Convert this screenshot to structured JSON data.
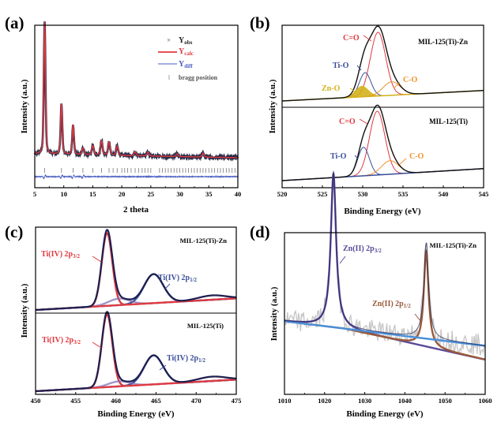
{
  "chart_data": [
    {
      "panel": "a",
      "panel_label": "(a)",
      "type": "line",
      "title": "",
      "xlabel": "2 theta",
      "ylabel": "Intensity (a.u.)",
      "xlim": [
        5,
        40
      ],
      "xticks": [
        "5",
        "10",
        "15",
        "20",
        "25",
        "30",
        "35",
        "40"
      ],
      "legend": {
        "placement": "top-right",
        "entries": [
          {
            "name": "Y",
            "sub": "obs",
            "marker": "x",
            "color": "#333333"
          },
          {
            "name": "Y",
            "sub": "calc",
            "marker": "line",
            "color": "#e0393f"
          },
          {
            "name": "Y",
            "sub": "diff",
            "marker": "line",
            "color": "#4a5fc1"
          },
          {
            "name": "bragg position",
            "sub": "",
            "marker": "tick",
            "color": "#777777"
          }
        ]
      },
      "peaks": [
        {
          "x": 6.7,
          "height": 1.0,
          "width": 0.17
        },
        {
          "x": 9.6,
          "height": 0.38,
          "width": 0.17
        },
        {
          "x": 11.6,
          "height": 0.22,
          "width": 0.17
        },
        {
          "x": 13.3,
          "height": 0.05,
          "width": 0.2
        },
        {
          "x": 15.0,
          "height": 0.07,
          "width": 0.2
        },
        {
          "x": 16.5,
          "height": 0.11,
          "width": 0.2
        },
        {
          "x": 17.8,
          "height": 0.1,
          "width": 0.2
        },
        {
          "x": 19.2,
          "height": 0.07,
          "width": 0.2
        },
        {
          "x": 22.3,
          "height": 0.03,
          "width": 0.2
        },
        {
          "x": 24.5,
          "height": 0.03,
          "width": 0.2
        },
        {
          "x": 29.5,
          "height": 0.02,
          "width": 0.2
        },
        {
          "x": 34.0,
          "height": 0.03,
          "width": 0.2
        }
      ],
      "baseline": 0.06,
      "bragg_positions": [
        6.7,
        9.6,
        11.6,
        13.3,
        15.0,
        16.5,
        17.8,
        18.5,
        19.2,
        20.0,
        20.5,
        21.0,
        21.6,
        22.3,
        22.9,
        23.5,
        24.0,
        24.5,
        25.0,
        26.5,
        27.0,
        27.5,
        28.0,
        28.5,
        29.0,
        29.5,
        30.0,
        30.5,
        31.0,
        31.5,
        32.0,
        32.5,
        33.0,
        33.5,
        34.0,
        34.5,
        35.0,
        35.5,
        36.0,
        36.5,
        37.0,
        37.5,
        38.0,
        38.5,
        39.0,
        39.5
      ]
    },
    {
      "panel": "b",
      "panel_label": "(b)",
      "type": "line",
      "xlabel": "Binding Energy (eV)",
      "ylabel": "Intensity (a.u.)",
      "xlim": [
        520,
        545
      ],
      "xticks": [
        "520",
        "525",
        "530",
        "535",
        "540",
        "545"
      ],
      "subplots": [
        {
          "sample": "MIL-125(Ti)-Zn",
          "baseline_color": "#d4b21c",
          "components": [
            {
              "name": "C=O",
              "center": 531.9,
              "height": 0.85,
              "fwhm": 1.6,
              "color": "#e0393f"
            },
            {
              "name": "Ti-O",
              "center": 530.3,
              "height": 0.32,
              "fwhm": 1.2,
              "color": "#3a4f9a"
            },
            {
              "name": "Zn-O",
              "center": 529.9,
              "height": 0.14,
              "fwhm": 1.3,
              "color": "#d4b21c",
              "filled": true
            },
            {
              "name": "C-O",
              "center": 533.6,
              "height": 0.18,
              "fwhm": 1.8,
              "color": "#f0922c"
            }
          ],
          "annotations": [
            "C=O",
            "Ti-O",
            "Zn-O",
            "C-O"
          ]
        },
        {
          "sample": "MIL-125(Ti)",
          "baseline_color": "#3a4f9a",
          "components": [
            {
              "name": "C=O",
              "center": 531.8,
              "height": 0.85,
              "fwhm": 1.6,
              "color": "#e0393f"
            },
            {
              "name": "Ti-O",
              "center": 530.1,
              "height": 0.38,
              "fwhm": 1.2,
              "color": "#3a4f9a"
            },
            {
              "name": "C-O",
              "center": 533.4,
              "height": 0.18,
              "fwhm": 1.8,
              "color": "#f0922c"
            }
          ],
          "annotations": [
            "C=O",
            "Ti-O",
            "C-O"
          ]
        }
      ]
    },
    {
      "panel": "c",
      "panel_label": "(c)",
      "type": "line",
      "xlabel": "Binding Energy (eV)",
      "ylabel": "Intensity (a.u.)",
      "xlim": [
        450,
        475
      ],
      "xticks": [
        "450",
        "455",
        "460",
        "465",
        "470",
        "475"
      ],
      "subplots": [
        {
          "sample": "MIL-125(Ti)-Zn",
          "components": [
            {
              "name": "Ti(IV) 2p3/2",
              "center": 458.9,
              "height": 1.0,
              "fwhm": 1.1,
              "color": "#e0393f"
            },
            {
              "name": "Ti(IV) 2p1/2",
              "center": 464.7,
              "height": 0.4,
              "fwhm": 2.0,
              "color": "#3a4f9a"
            },
            {
              "name": "satellite",
              "center": 460.4,
              "height": 0.09,
              "fwhm": 2.2,
              "color": "#7a6ab0"
            },
            {
              "name": "satellite2",
              "center": 472.0,
              "height": 0.06,
              "fwhm": 3.0,
              "color": "#d9a0a8"
            }
          ],
          "annotations": [
            {
              "main": "Ti(IV) 2p",
              "sub": "3/2",
              "color": "#e0393f"
            },
            {
              "main": "Ti(IV) 2p",
              "sub": "1/2",
              "color": "#3a4f9a"
            }
          ]
        },
        {
          "sample": "MIL-125(Ti)",
          "components": [
            {
              "name": "Ti(IV) 2p3/2",
              "center": 458.9,
              "height": 1.0,
              "fwhm": 1.1,
              "color": "#e0393f"
            },
            {
              "name": "Ti(IV) 2p1/2",
              "center": 464.7,
              "height": 0.4,
              "fwhm": 2.0,
              "color": "#3a4f9a"
            },
            {
              "name": "satellite",
              "center": 460.4,
              "height": 0.07,
              "fwhm": 2.2,
              "color": "#7a6ab0"
            },
            {
              "name": "satellite2",
              "center": 472.0,
              "height": 0.06,
              "fwhm": 3.0,
              "color": "#d9a0a8"
            }
          ],
          "annotations": [
            {
              "main": "Ti(IV) 2p",
              "sub": "3/2",
              "color": "#e0393f"
            },
            {
              "main": "Ti(IV) 2p",
              "sub": "1/2",
              "color": "#3a4f9a"
            }
          ]
        }
      ]
    },
    {
      "panel": "d",
      "panel_label": "(d)",
      "type": "line",
      "xlabel": "Binding Energy (eV)",
      "ylabel": "Intensity (a.u.)",
      "xlim": [
        1010,
        1060
      ],
      "xticks": [
        "1010",
        "1020",
        "1030",
        "1040",
        "1050",
        "1060"
      ],
      "sample": "MIL-125(Ti)-Zn",
      "components": [
        {
          "name": "Zn(II) 2p3/2",
          "center": 1022.2,
          "height": 1.0,
          "fwhm": 1.6,
          "color": "#5b4a9a"
        },
        {
          "name": "Zn(II) 2p1/2",
          "center": 1045.3,
          "height": 0.62,
          "fwhm": 1.4,
          "color": "#9a5a3a"
        }
      ],
      "background_line": {
        "color": "#4a8fd8",
        "start": 0.46,
        "end": 0.3
      },
      "noise_color": "#c8c8c8",
      "annotations": [
        {
          "main": "Zn(II) 2p",
          "sub": "3/2",
          "color": "#5b4a9a"
        },
        {
          "main": "Zn(II) 2p",
          "sub": "1/2",
          "color": "#9a5a3a"
        }
      ]
    }
  ]
}
